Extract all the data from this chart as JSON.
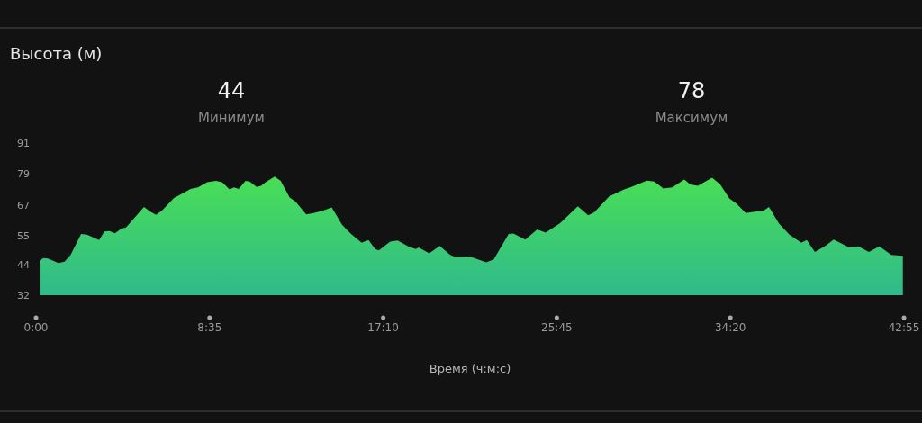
{
  "chart_data": {
    "type": "area",
    "title": "Высота (м)",
    "xlabel": "Время (ч:м:с)",
    "annotations": [
      "44",
      "Минимум",
      "78",
      "Максимум"
    ],
    "xlim": [
      0,
      42.9167
    ],
    "ylim": [
      32,
      91
    ],
    "xticks": [
      {
        "value": 0,
        "label": "0:00"
      },
      {
        "value": 8.5833,
        "label": "8:35"
      },
      {
        "value": 17.1667,
        "label": "17:10"
      },
      {
        "value": 25.75,
        "label": "25:45"
      },
      {
        "value": 34.3333,
        "label": "34:20"
      },
      {
        "value": 42.9167,
        "label": "42:55"
      }
    ],
    "yticks": [
      32,
      44,
      55,
      67,
      79,
      91
    ],
    "grid": false,
    "series": [
      {
        "color": "#44cf50",
        "x": [
          0.18,
          0.37,
          0.59,
          1.11,
          1.41,
          1.71,
          2.23,
          2.52,
          3.12,
          3.38,
          3.64,
          3.9,
          4.23,
          4.45,
          5.34,
          5.64,
          5.93,
          6.23,
          6.82,
          7.12,
          7.64,
          8.01,
          8.46,
          8.9,
          9.2,
          9.57,
          9.79,
          10.02,
          10.36,
          10.56,
          10.91,
          11.13,
          11.35,
          11.8,
          12.1,
          12.54,
          12.83,
          13.36,
          13.73,
          14.17,
          14.62,
          15.14,
          15.58,
          16.1,
          16.44,
          16.77,
          16.95,
          17.51,
          17.88,
          18.4,
          18.77,
          18.92,
          19.44,
          19.96,
          20.48,
          20.7,
          21.44,
          22.26,
          22.63,
          23.37,
          23.6,
          24.19,
          24.78,
          25.2,
          25.9,
          26.79,
          27.3,
          27.6,
          28.34,
          29.08,
          29.38,
          30.2,
          30.57,
          31.02,
          31.46,
          32.05,
          32.35,
          32.72,
          33.43,
          33.83,
          34.28,
          34.65,
          35.09,
          35.62,
          35.98,
          36.24,
          36.73,
          37.25,
          37.84,
          38.11,
          38.51,
          39.03,
          39.44,
          40.21,
          40.66,
          41.18,
          41.7,
          42.29,
          42.86
        ],
        "values": [
          45.5,
          46.4,
          46.2,
          44.5,
          45,
          47.6,
          55.7,
          55.5,
          53.4,
          56.7,
          56.9,
          56,
          57.8,
          58.3,
          66.2,
          64.5,
          63.2,
          64.8,
          69.7,
          70.9,
          73.2,
          73.8,
          75.8,
          76.3,
          75.8,
          73,
          73.8,
          73.2,
          76.3,
          76.1,
          74,
          74.4,
          75.8,
          78,
          76.3,
          69.9,
          68.3,
          63.3,
          63.9,
          64.7,
          66,
          59.2,
          55.7,
          52.3,
          53.4,
          49.9,
          49.4,
          52.8,
          53.2,
          50.9,
          49.9,
          50.5,
          48.2,
          51.1,
          47.6,
          46.9,
          47,
          44.7,
          45.9,
          55.7,
          55.9,
          53.6,
          57.5,
          56.3,
          59.8,
          66.5,
          63,
          64.1,
          70.3,
          73,
          73.8,
          76.4,
          76.1,
          73.4,
          73.8,
          76.9,
          74.9,
          74.4,
          77.6,
          74.9,
          69.5,
          67.4,
          63.9,
          64.5,
          64.8,
          66.2,
          59.8,
          55.5,
          52.3,
          53.4,
          48.8,
          51.1,
          53.6,
          50.5,
          50.9,
          48.8,
          50.9,
          47.6,
          47.3
        ]
      }
    ]
  }
}
